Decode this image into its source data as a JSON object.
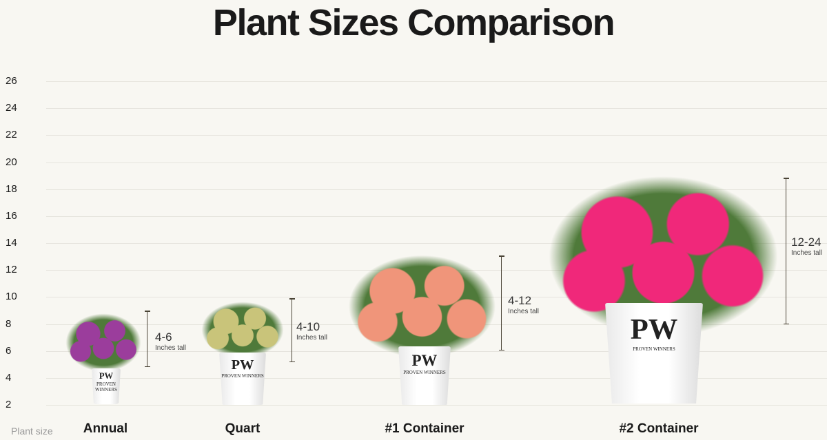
{
  "chart_data": {
    "type": "bar",
    "title": "Plant Sizes Comparison",
    "xlabel": "Plant size",
    "ylabel": "",
    "ylim": [
      2,
      26
    ],
    "yticks": [
      26,
      24,
      22,
      20,
      18,
      16,
      14,
      12,
      10,
      8,
      6,
      4,
      2
    ],
    "grid": true,
    "categories": [
      "Annual",
      "Quart",
      "#1 Container",
      "#2 Container"
    ],
    "ranges": [
      {
        "category": "Annual",
        "min": 4,
        "max": 6,
        "label": "4-6",
        "unit": "Inches tall",
        "color": "#9b3d9c"
      },
      {
        "category": "Quart",
        "min": 4,
        "max": 10,
        "label": "4-10",
        "unit": "Inches tall",
        "color": "#c9c47a"
      },
      {
        "category": "#1 Container",
        "min": 4,
        "max": 12,
        "label": "4-12",
        "unit": "Inches tall",
        "color": "#f0957a"
      },
      {
        "category": "#2 Container",
        "min": 12,
        "max": 24,
        "label": "12-24",
        "unit": "Inches tall",
        "color": "#f0287a"
      }
    ]
  },
  "pot": {
    "logo": "PW",
    "brand": "PROVEN WINNERS"
  }
}
